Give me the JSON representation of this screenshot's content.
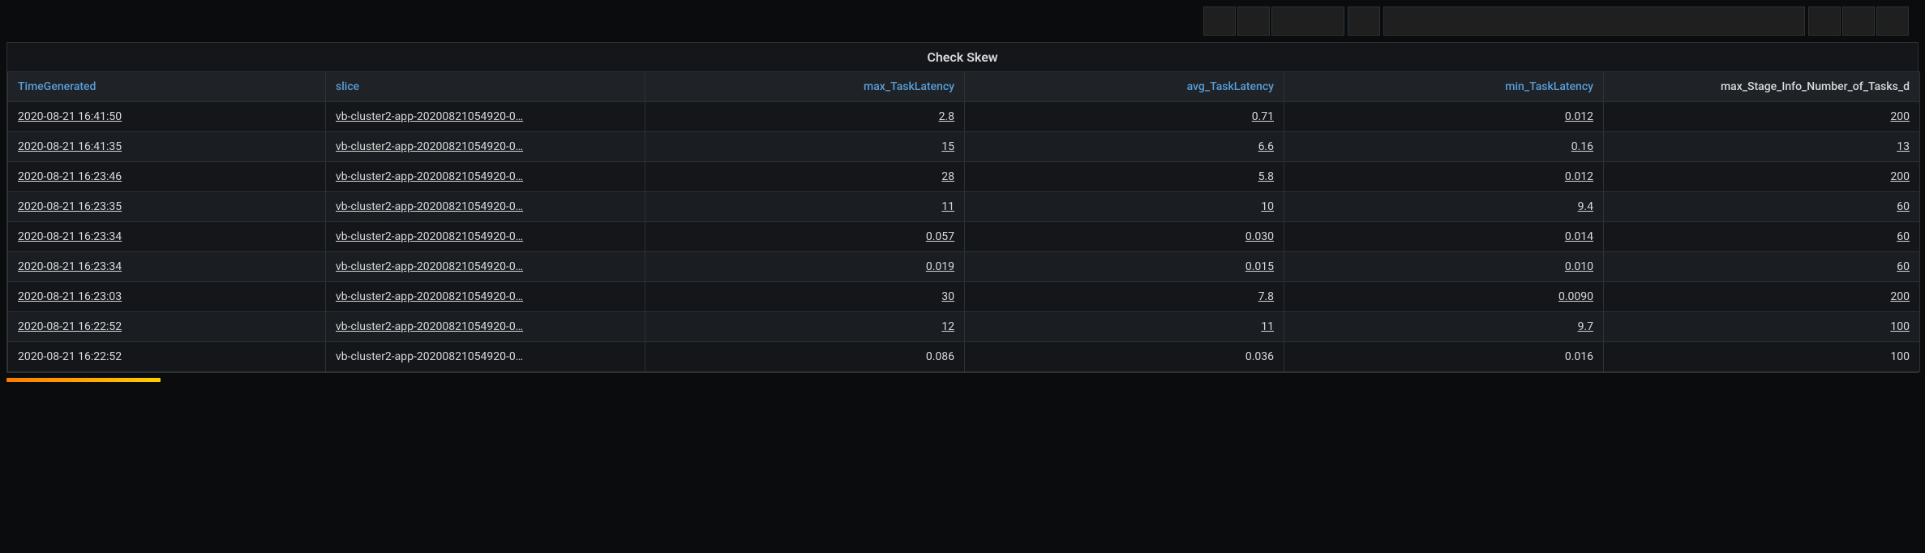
{
  "panel": {
    "title": "Check Skew"
  },
  "columns": [
    {
      "key": "TimeGenerated",
      "label": "TimeGenerated",
      "align": "left",
      "link_header": true
    },
    {
      "key": "slice",
      "label": "slice",
      "align": "left",
      "link_header": true
    },
    {
      "key": "max_TaskLatency",
      "label": "max_TaskLatency",
      "align": "right",
      "link_header": true
    },
    {
      "key": "avg_TaskLatency",
      "label": "avg_TaskLatency",
      "align": "right",
      "link_header": true
    },
    {
      "key": "min_TaskLatency",
      "label": "min_TaskLatency",
      "align": "right",
      "link_header": true
    },
    {
      "key": "max_Stage_Info_Number_of_Tasks_d",
      "label": "max_Stage_Info_Number_of_Tasks_d",
      "align": "right",
      "link_header": false
    }
  ],
  "rows": [
    {
      "link": true,
      "TimeGenerated": "2020-08-21 16:41:50",
      "slice": "vb-cluster2-app-20200821054920-0…",
      "max_TaskLatency": "2.8",
      "avg_TaskLatency": "0.71",
      "min_TaskLatency": "0.012",
      "max_Stage_Info_Number_of_Tasks_d": "200"
    },
    {
      "link": true,
      "TimeGenerated": "2020-08-21 16:41:35",
      "slice": "vb-cluster2-app-20200821054920-0…",
      "max_TaskLatency": "15",
      "avg_TaskLatency": "6.6",
      "min_TaskLatency": "0.16",
      "max_Stage_Info_Number_of_Tasks_d": "13"
    },
    {
      "link": true,
      "TimeGenerated": "2020-08-21 16:23:46",
      "slice": "vb-cluster2-app-20200821054920-0…",
      "max_TaskLatency": "28",
      "avg_TaskLatency": "5.8",
      "min_TaskLatency": "0.012",
      "max_Stage_Info_Number_of_Tasks_d": "200"
    },
    {
      "link": true,
      "TimeGenerated": "2020-08-21 16:23:35",
      "slice": "vb-cluster2-app-20200821054920-0…",
      "max_TaskLatency": "11",
      "avg_TaskLatency": "10",
      "min_TaskLatency": "9.4",
      "max_Stage_Info_Number_of_Tasks_d": "60"
    },
    {
      "link": true,
      "TimeGenerated": "2020-08-21 16:23:34",
      "slice": "vb-cluster2-app-20200821054920-0…",
      "max_TaskLatency": "0.057",
      "avg_TaskLatency": "0.030",
      "min_TaskLatency": "0.014",
      "max_Stage_Info_Number_of_Tasks_d": "60"
    },
    {
      "link": true,
      "TimeGenerated": "2020-08-21 16:23:34",
      "slice": "vb-cluster2-app-20200821054920-0…",
      "max_TaskLatency": "0.019",
      "avg_TaskLatency": "0.015",
      "min_TaskLatency": "0.010",
      "max_Stage_Info_Number_of_Tasks_d": "60"
    },
    {
      "link": true,
      "TimeGenerated": "2020-08-21 16:23:03",
      "slice": "vb-cluster2-app-20200821054920-0…",
      "max_TaskLatency": "30",
      "avg_TaskLatency": "7.8",
      "min_TaskLatency": "0.0090",
      "max_Stage_Info_Number_of_Tasks_d": "200"
    },
    {
      "link": true,
      "TimeGenerated": "2020-08-21 16:22:52",
      "slice": "vb-cluster2-app-20200821054920-0…",
      "max_TaskLatency": "12",
      "avg_TaskLatency": "11",
      "min_TaskLatency": "9.7",
      "max_Stage_Info_Number_of_Tasks_d": "100"
    },
    {
      "link": false,
      "TimeGenerated": "2020-08-21 16:22:52",
      "slice": "vb-cluster2-app-20200821054920-0…",
      "max_TaskLatency": "0.086",
      "avg_TaskLatency": "0.036",
      "min_TaskLatency": "0.016",
      "max_Stage_Info_Number_of_Tasks_d": "100"
    }
  ],
  "colors": {
    "page_bg": "#0b0c0e",
    "panel_bg": "#141619",
    "row_alt_bg": "#1a1d21",
    "header_bg": "#1f2226",
    "border": "#2c3235",
    "text": "#d8d9da",
    "link_header": "#589ed8",
    "accent_gradient_start": "#ff7b00",
    "accent_gradient_end": "#ffce00"
  }
}
